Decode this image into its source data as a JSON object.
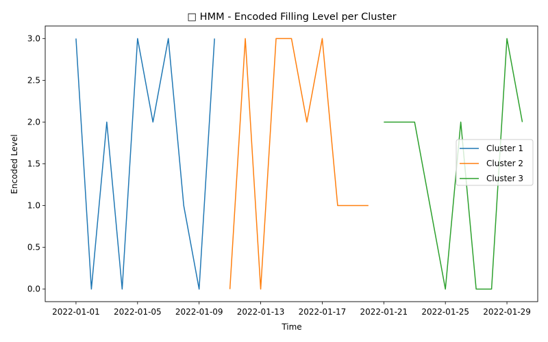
{
  "chart_data": {
    "type": "line",
    "title": "□ HMM - Encoded Filling Level per Cluster",
    "xlabel": "Time",
    "ylabel": "Encoded Level",
    "xlim": [
      "2021-12-30",
      "2022-01-31"
    ],
    "ylim": [
      -0.15,
      3.15
    ],
    "x_ticks": [
      "2022-01-01",
      "2022-01-05",
      "2022-01-09",
      "2022-01-13",
      "2022-01-17",
      "2022-01-21",
      "2022-01-25",
      "2022-01-29"
    ],
    "y_ticks": [
      "0.0",
      "0.5",
      "1.0",
      "1.5",
      "2.0",
      "2.5",
      "3.0"
    ],
    "grid": false,
    "legend_position": "center-right",
    "series": [
      {
        "name": "Cluster 1",
        "color": "#1f77b4",
        "x": [
          "2022-01-01",
          "2022-01-02",
          "2022-01-03",
          "2022-01-04",
          "2022-01-05",
          "2022-01-06",
          "2022-01-07",
          "2022-01-08",
          "2022-01-09",
          "2022-01-10"
        ],
        "y": [
          3,
          0,
          2,
          0,
          3,
          2,
          3,
          1,
          0,
          3
        ]
      },
      {
        "name": "Cluster 2",
        "color": "#ff7f0e",
        "x": [
          "2022-01-11",
          "2022-01-12",
          "2022-01-13",
          "2022-01-14",
          "2022-01-15",
          "2022-01-16",
          "2022-01-17",
          "2022-01-18",
          "2022-01-19",
          "2022-01-20"
        ],
        "y": [
          0,
          3,
          0,
          3,
          3,
          2,
          3,
          1,
          1,
          1
        ]
      },
      {
        "name": "Cluster 3",
        "color": "#2ca02c",
        "x": [
          "2022-01-21",
          "2022-01-22",
          "2022-01-23",
          "2022-01-24",
          "2022-01-25",
          "2022-01-26",
          "2022-01-27",
          "2022-01-28",
          "2022-01-29",
          "2022-01-30"
        ],
        "y": [
          2,
          2,
          2,
          1,
          0,
          2,
          0,
          0,
          3,
          2
        ]
      }
    ]
  }
}
